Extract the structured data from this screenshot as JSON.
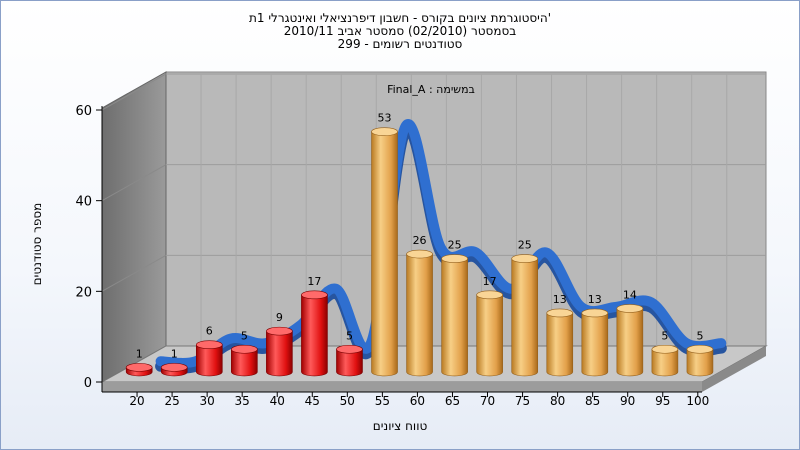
{
  "chart_data": {
    "type": "bar",
    "title_lines": [
      "היסטוגרמת ציונים בקורס - חשבון דיפרנציאלי ואינטגרלי 1ת'",
      "בסמסטר  (02/2010)  סמסטר אביב 2010/11",
      "סטודנטים רשומים - 299"
    ],
    "ylabel": "מספר סטודנטים",
    "xlabel": "טווח ציונים",
    "annotation": "במשימה : Final_A",
    "ylim": [
      0,
      60
    ],
    "yticks": [
      0,
      20,
      40,
      60
    ],
    "categories": [
      "20",
      "25",
      "30",
      "35",
      "40",
      "45",
      "50",
      "55",
      "60",
      "65",
      "70",
      "75",
      "80",
      "85",
      "90",
      "95",
      "100"
    ],
    "values": [
      1,
      1,
      6,
      5,
      9,
      17,
      5,
      53,
      26,
      25,
      17,
      25,
      13,
      13,
      14,
      5,
      5
    ],
    "fail_color": "#e01010",
    "pass_color": "#e8a848",
    "curve_color": "#2f6fd0",
    "grid": true
  }
}
